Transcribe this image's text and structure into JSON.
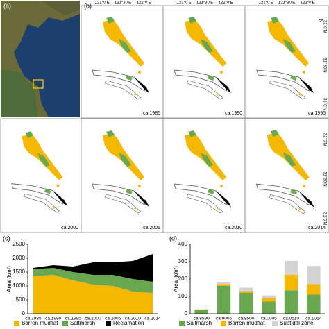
{
  "panel_labels": {
    "a": "(a)",
    "b": "(b)",
    "c": "(c)",
    "d": "(d)"
  },
  "maps": {
    "lon_labels": [
      "121°0'E",
      "121°30'E",
      "122°0'E"
    ],
    "lat_labels": [
      "32°0'N",
      "31°30'N",
      "31°0'N"
    ],
    "north": "N",
    "panels": [
      "ca.1985",
      "ca.1990",
      "ca.1995",
      "ca.2000",
      "ca.2005",
      "ca.2010",
      "ca.2014"
    ]
  },
  "chart_data": [
    {
      "type": "area",
      "ylabel": "Area (km²)",
      "categories": [
        "ca.1985",
        "ca.1990",
        "ca.1995",
        "ca.2000",
        "ca.2005",
        "ca.2010",
        "ca.2014"
      ],
      "series": [
        {
          "name": "Barren mudflat",
          "color": "#f5b800",
          "values": [
            1350,
            1400,
            1200,
            1050,
            1000,
            800,
            750
          ]
        },
        {
          "name": "Saltmarsh",
          "color": "#6aa84f",
          "values": [
            250,
            250,
            300,
            350,
            400,
            450,
            400
          ]
        },
        {
          "name": "Reclamation",
          "color": "#000000",
          "values": [
            50,
            100,
            200,
            450,
            450,
            650,
            1000
          ]
        }
      ],
      "ylim": [
        0,
        2500
      ],
      "yticks": [
        0,
        500,
        1000,
        1500,
        2000,
        2500
      ]
    },
    {
      "type": "bar",
      "ylabel": "Area (km²)",
      "categories": [
        "ca.8590",
        "ca.9005",
        "ca.9500",
        "ca.0005",
        "ca.0510",
        "ca.1014"
      ],
      "series": [
        {
          "name": "Saltmarsh",
          "color": "#6aa84f",
          "values": [
            20,
            160,
            120,
            70,
            135,
            110
          ]
        },
        {
          "name": "Barren mudflat",
          "color": "#f5b800",
          "values": [
            5,
            10,
            10,
            20,
            90,
            60
          ]
        },
        {
          "name": "Subtidal zone",
          "color": "#d3d3d3",
          "values": [
            0,
            10,
            20,
            15,
            80,
            105
          ]
        }
      ],
      "ylim": [
        0,
        400
      ],
      "yticks": [
        0,
        100,
        200,
        300,
        400
      ]
    }
  ]
}
